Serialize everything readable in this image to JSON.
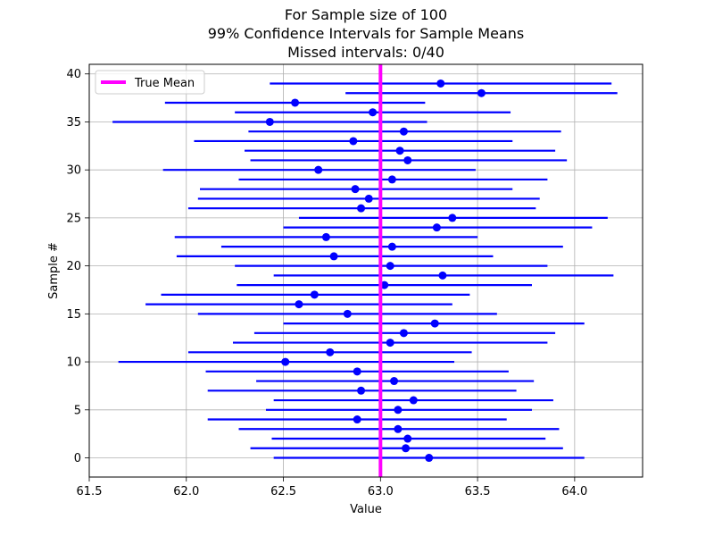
{
  "chart_data": {
    "type": "confidence-interval",
    "title_lines": [
      "For Sample size of 100",
      "99% Confidence Intervals for Sample Means",
      "Missed intervals: 0/40"
    ],
    "xlabel": "Value",
    "ylabel": "Sample #",
    "xlim": [
      61.5,
      64.35
    ],
    "ylim": [
      -2,
      41
    ],
    "xticks": [
      61.5,
      62.0,
      62.5,
      63.0,
      63.5,
      64.0
    ],
    "xtick_labels": [
      "61.5",
      "62.0",
      "62.5",
      "63.0",
      "63.5",
      "64.0"
    ],
    "yticks": [
      0,
      5,
      10,
      15,
      20,
      25,
      30,
      35,
      40
    ],
    "ytick_labels": [
      "0",
      "5",
      "10",
      "15",
      "20",
      "25",
      "30",
      "35",
      "40"
    ],
    "grid": true,
    "legend": {
      "position": "top-left",
      "entries": [
        "True Mean"
      ]
    },
    "true_mean": 63.0,
    "colors": {
      "interval": "#0000ff",
      "mean_marker": "#0000ff",
      "true_mean": "#ff00ff",
      "grid": "#b0b0b0"
    },
    "intervals": [
      {
        "sample": 0,
        "mean": 63.25,
        "low": 62.45,
        "high": 64.05
      },
      {
        "sample": 1,
        "mean": 63.13,
        "low": 62.33,
        "high": 63.94
      },
      {
        "sample": 2,
        "mean": 63.14,
        "low": 62.44,
        "high": 63.85
      },
      {
        "sample": 3,
        "mean": 63.09,
        "low": 62.27,
        "high": 63.92
      },
      {
        "sample": 4,
        "mean": 62.88,
        "low": 62.11,
        "high": 63.65
      },
      {
        "sample": 5,
        "mean": 63.09,
        "low": 62.41,
        "high": 63.78
      },
      {
        "sample": 6,
        "mean": 63.17,
        "low": 62.45,
        "high": 63.89
      },
      {
        "sample": 7,
        "mean": 62.9,
        "low": 62.11,
        "high": 63.7
      },
      {
        "sample": 8,
        "mean": 63.07,
        "low": 62.36,
        "high": 63.79
      },
      {
        "sample": 9,
        "mean": 62.88,
        "low": 62.1,
        "high": 63.66
      },
      {
        "sample": 10,
        "mean": 62.51,
        "low": 61.65,
        "high": 63.38
      },
      {
        "sample": 11,
        "mean": 62.74,
        "low": 62.01,
        "high": 63.47
      },
      {
        "sample": 12,
        "mean": 63.05,
        "low": 62.24,
        "high": 63.86
      },
      {
        "sample": 13,
        "mean": 63.12,
        "low": 62.35,
        "high": 63.9
      },
      {
        "sample": 14,
        "mean": 63.28,
        "low": 62.5,
        "high": 64.05
      },
      {
        "sample": 15,
        "mean": 62.83,
        "low": 62.06,
        "high": 63.6
      },
      {
        "sample": 16,
        "mean": 62.58,
        "low": 61.79,
        "high": 63.37
      },
      {
        "sample": 17,
        "mean": 62.66,
        "low": 61.87,
        "high": 63.46
      },
      {
        "sample": 18,
        "mean": 63.02,
        "low": 62.26,
        "high": 63.78
      },
      {
        "sample": 19,
        "mean": 63.32,
        "low": 62.45,
        "high": 64.2
      },
      {
        "sample": 20,
        "mean": 63.05,
        "low": 62.25,
        "high": 63.86
      },
      {
        "sample": 21,
        "mean": 62.76,
        "low": 61.95,
        "high": 63.58
      },
      {
        "sample": 22,
        "mean": 63.06,
        "low": 62.18,
        "high": 63.94
      },
      {
        "sample": 23,
        "mean": 62.72,
        "low": 61.94,
        "high": 63.5
      },
      {
        "sample": 24,
        "mean": 63.29,
        "low": 62.5,
        "high": 64.09
      },
      {
        "sample": 25,
        "mean": 63.37,
        "low": 62.58,
        "high": 64.17
      },
      {
        "sample": 26,
        "mean": 62.9,
        "low": 62.01,
        "high": 63.8
      },
      {
        "sample": 27,
        "mean": 62.94,
        "low": 62.06,
        "high": 63.82
      },
      {
        "sample": 28,
        "mean": 62.87,
        "low": 62.07,
        "high": 63.68
      },
      {
        "sample": 29,
        "mean": 63.06,
        "low": 62.27,
        "high": 63.86
      },
      {
        "sample": 30,
        "mean": 62.68,
        "low": 61.88,
        "high": 63.49
      },
      {
        "sample": 31,
        "mean": 63.14,
        "low": 62.33,
        "high": 63.96
      },
      {
        "sample": 32,
        "mean": 63.1,
        "low": 62.3,
        "high": 63.9
      },
      {
        "sample": 33,
        "mean": 62.86,
        "low": 62.04,
        "high": 63.68
      },
      {
        "sample": 34,
        "mean": 63.12,
        "low": 62.32,
        "high": 63.93
      },
      {
        "sample": 35,
        "mean": 62.43,
        "low": 61.62,
        "high": 63.24
      },
      {
        "sample": 36,
        "mean": 62.96,
        "low": 62.25,
        "high": 63.67
      },
      {
        "sample": 37,
        "mean": 62.56,
        "low": 61.89,
        "high": 63.23
      },
      {
        "sample": 38,
        "mean": 63.52,
        "low": 62.82,
        "high": 64.22
      },
      {
        "sample": 39,
        "mean": 63.31,
        "low": 62.43,
        "high": 64.19
      }
    ]
  }
}
